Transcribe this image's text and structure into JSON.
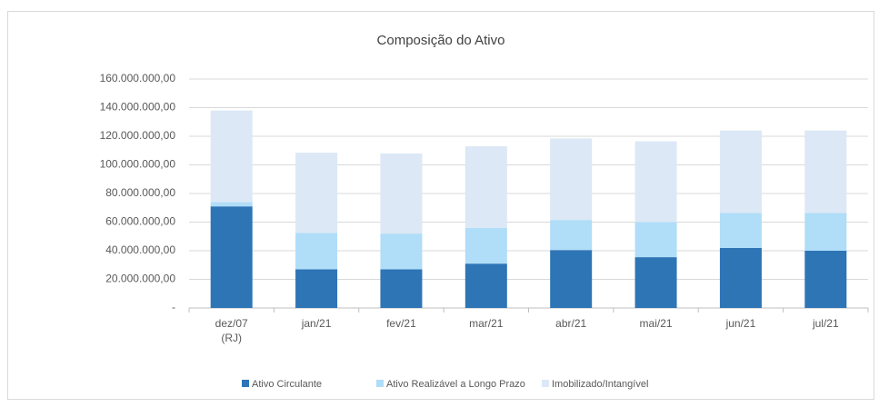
{
  "chart_data": {
    "type": "stacked_bar",
    "title": "Composição do Ativo",
    "categories": [
      "dez/07\n(RJ)",
      "jan/21",
      "fev/21",
      "mar/21",
      "abr/21",
      "mai/21",
      "jun/21",
      "jul/21"
    ],
    "series": [
      {
        "name": "Ativo Circulante",
        "color": "#2e75b6",
        "values": [
          71000000,
          27000000,
          27000000,
          31000000,
          40500000,
          35500000,
          42000000,
          40000000
        ]
      },
      {
        "name": "Ativo Realizável a Longo Prazo",
        "color": "#b0ddf8",
        "values": [
          3000000,
          25500000,
          25000000,
          25000000,
          21000000,
          24500000,
          24500000,
          26500000
        ]
      },
      {
        "name": "Imobilizado/Intangível",
        "color": "#dce8f5",
        "values": [
          64000000,
          56000000,
          56000000,
          57000000,
          57000000,
          56500000,
          57500000,
          57500000
        ]
      }
    ],
    "ylim": [
      0,
      160000000
    ],
    "yticks": [
      {
        "value": 0,
        "label": "-"
      },
      {
        "value": 20000000,
        "label": "20.000.000,00"
      },
      {
        "value": 40000000,
        "label": "40.000.000,00"
      },
      {
        "value": 60000000,
        "label": "60.000.000,00"
      },
      {
        "value": 80000000,
        "label": "80.000.000,00"
      },
      {
        "value": 100000000,
        "label": "100.000.000,00"
      },
      {
        "value": 120000000,
        "label": "120.000.000,00"
      },
      {
        "value": 140000000,
        "label": "140.000.000,00"
      },
      {
        "value": 160000000,
        "label": "160.000.000,00"
      }
    ],
    "grid": true,
    "legend": "bottom"
  }
}
